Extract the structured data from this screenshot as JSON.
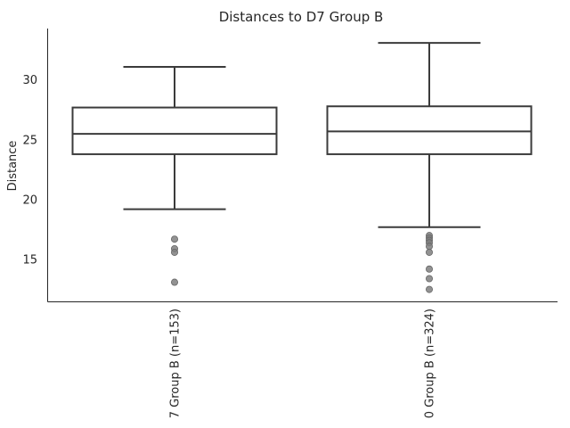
{
  "chart_data": {
    "type": "box",
    "title": "Distances to D7 Group B",
    "xlabel": "",
    "ylabel": "Distance",
    "ylim": [
      11.5,
      34.3
    ],
    "yticks": [
      15,
      20,
      25,
      30
    ],
    "grid": false,
    "categories": [
      "7 Group B (n=153)",
      "0 Group B (n=324)"
    ],
    "boxes": [
      {
        "whislo": 19.2,
        "q1": 23.8,
        "med": 25.5,
        "q3": 27.7,
        "whishi": 31.1,
        "fliers": [
          16.7,
          15.9,
          15.6,
          13.1
        ]
      },
      {
        "whislo": 17.7,
        "q1": 23.8,
        "med": 25.7,
        "q3": 27.8,
        "whishi": 33.1,
        "fliers": [
          17.0,
          16.8,
          16.6,
          16.4,
          16.1,
          15.6,
          14.2,
          13.4,
          12.5
        ]
      }
    ],
    "colors": {
      "box_edge": "#3b3b3b",
      "flier": "#7f7f7f",
      "text": "#262626"
    }
  }
}
